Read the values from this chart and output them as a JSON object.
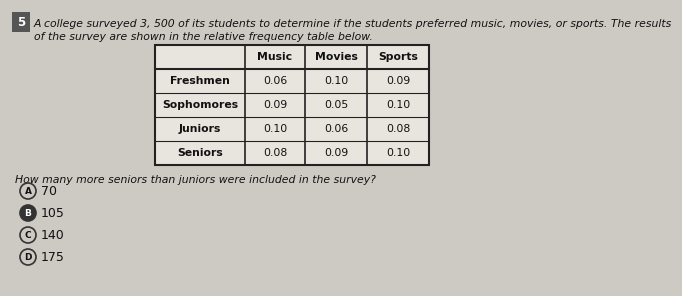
{
  "question_number": "5",
  "intro_line1": "A college surveyed 3, 500 of its students to determine if the students preferred music, movies, or sports. The results",
  "intro_line2": "of the survey are shown in the relative frequency table below.",
  "table_headers": [
    "",
    "Music",
    "Movies",
    "Sports"
  ],
  "table_rows": [
    [
      "Freshmen",
      "0.06",
      "0.10",
      "0.09"
    ],
    [
      "Sophomores",
      "0.09",
      "0.05",
      "0.10"
    ],
    [
      "Juniors",
      "0.10",
      "0.06",
      "0.08"
    ],
    [
      "Seniors",
      "0.08",
      "0.09",
      "0.10"
    ]
  ],
  "question_text": "How many more seniors than juniors were included in the survey?",
  "choices": [
    {
      "label": "A",
      "value": "70",
      "filled": false
    },
    {
      "label": "B",
      "value": "105",
      "filled": true
    },
    {
      "label": "C",
      "value": "140",
      "filled": false
    },
    {
      "label": "D",
      "value": "175",
      "filled": false
    }
  ],
  "bg_color": "#cccac3",
  "text_color": "#111111",
  "num_box_color": "#555555",
  "table_line_color": "#222222",
  "table_bg": "#e8e5de",
  "fs_intro": 7.8,
  "fs_table": 7.8,
  "fs_question": 7.8,
  "fs_choices": 9.0,
  "fs_number": 8.5,
  "fs_circle_label": 6.5
}
